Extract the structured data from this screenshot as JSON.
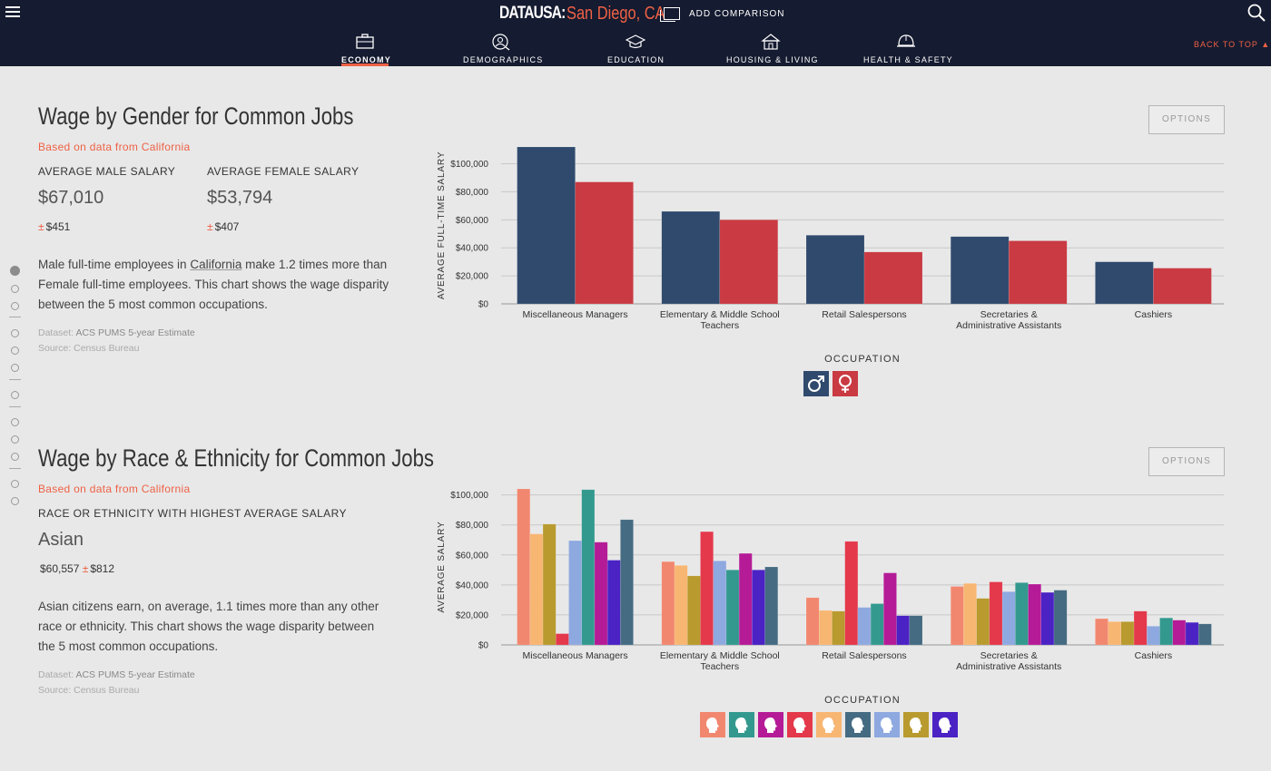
{
  "header": {
    "logo": "DATAUSA:",
    "place": "San Diego, CA",
    "add_comparison": "ADD COMPARISON",
    "back_to_top": "BACK TO TOP",
    "nav": [
      {
        "label": "ECONOMY",
        "active": true,
        "icon": "briefcase-icon"
      },
      {
        "label": "DEMOGRAPHICS",
        "active": false,
        "icon": "people-icon"
      },
      {
        "label": "EDUCATION",
        "active": false,
        "icon": "graduation-cap-icon"
      },
      {
        "label": "HOUSING & LIVING",
        "active": false,
        "icon": "house-icon"
      },
      {
        "label": "HEALTH & SAFETY",
        "active": false,
        "icon": "helmet-icon"
      }
    ],
    "colors": {
      "bar": "#151b30",
      "accent": "#ef6145"
    }
  },
  "gender_section": {
    "title": "Wage by Gender for Common Jobs",
    "based_on": "Based on data from California",
    "male_label": "AVERAGE MALE SALARY",
    "male_value": "$67,010",
    "male_moe": "$451",
    "female_label": "AVERAGE FEMALE SALARY",
    "female_value": "$53,794",
    "female_moe": "$407",
    "pm": "±",
    "para_before": "Male full-time employees in ",
    "para_place": "California",
    "para_after": " make 1.2 times more than Female full-time employees. This chart shows the wage disparity between the 5 most common occupations.",
    "dataset_label": "Dataset: ",
    "dataset": "ACS PUMS 5-year Estimate",
    "source_label": "Source: ",
    "source": "Census Bureau",
    "options": "OPTIONS"
  },
  "race_section": {
    "title": "Wage by Race & Ethnicity for Common Jobs",
    "based_on": "Based on data from California",
    "highest_label": "RACE OR ETHNICITY WITH HIGHEST AVERAGE SALARY",
    "highest_value": "Asian",
    "highest_salary": "$60,557",
    "highest_moe": "$812",
    "pm": "±",
    "para": "Asian citizens earn, on average, 1.1 times more than any other race or ethnicity. This chart shows the wage disparity between the 5 most common occupations.",
    "dataset_label": "Dataset: ",
    "dataset": "ACS PUMS 5-year Estimate",
    "source_label": "Source: ",
    "source": "Census Bureau",
    "options": "OPTIONS"
  },
  "chart_data": [
    {
      "type": "bar",
      "categories": [
        "Miscellaneous Managers",
        "Elementary & Middle School Teachers",
        "Retail Salespersons",
        "Secretaries & Administrative Assistants",
        "Cashiers"
      ],
      "xlabel": "OCCUPATION",
      "ylabel": "AVERAGE FULL-TIME SALARY",
      "ylim": [
        0,
        112000
      ],
      "yticks": [
        "$0",
        "$20,000",
        "$40,000",
        "$60,000",
        "$80,000",
        "$100,000"
      ],
      "grid": true,
      "series": [
        {
          "values": [
            112000,
            66000,
            49000,
            48000,
            30000
          ],
          "color": "#2f4a6d",
          "icon": "male-symbol-icon"
        },
        {
          "values": [
            87000,
            60000,
            37000,
            45000,
            25500
          ],
          "color": "#c93a42",
          "icon": "female-symbol-icon"
        }
      ]
    },
    {
      "type": "bar",
      "categories": [
        "Miscellaneous Managers",
        "Elementary & Middle School Teachers",
        "Retail Salespersons",
        "Secretaries & Administrative Assistants",
        "Cashiers"
      ],
      "xlabel": "OCCUPATION",
      "ylabel": "AVERAGE SALARY",
      "ylim": [
        0,
        104000
      ],
      "yticks": [
        "$0",
        "$20,000",
        "$40,000",
        "$60,000",
        "$80,000",
        "$100,000"
      ],
      "grid": true,
      "series": [
        {
          "values": [
            104000,
            55500,
            31500,
            39000,
            17500
          ],
          "color": "#f2876f"
        },
        {
          "values": [
            74000,
            53000,
            23000,
            41000,
            15500
          ],
          "color": "#f8b673"
        },
        {
          "values": [
            80500,
            46000,
            22500,
            31000,
            15500
          ],
          "color": "#b89a2e"
        },
        {
          "values": [
            7500,
            75500,
            69000,
            42000,
            22500
          ],
          "color": "#e4384b"
        },
        {
          "values": [
            69500,
            56000,
            25000,
            35500,
            12500
          ],
          "color": "#8ea8e0"
        },
        {
          "values": [
            103500,
            50000,
            27500,
            41500,
            18000
          ],
          "color": "#33998f"
        },
        {
          "values": [
            68500,
            61000,
            48000,
            40500,
            16500
          ],
          "color": "#b51b96"
        },
        {
          "values": [
            56500,
            50000,
            19500,
            35000,
            15000
          ],
          "color": "#4b22c4"
        },
        {
          "values": [
            83500,
            52000,
            19500,
            36500,
            14000
          ],
          "color": "#456b82"
        }
      ],
      "legend_order": [
        "#f2876f",
        "#33998f",
        "#b51b96",
        "#e4384b",
        "#f8b673",
        "#456b82",
        "#8ea8e0",
        "#b89a2e",
        "#4b22c4"
      ]
    }
  ]
}
